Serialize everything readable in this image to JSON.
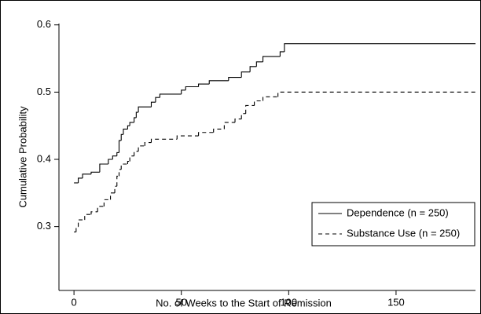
{
  "chart_data": {
    "type": "step",
    "xlabel": "No. of Weeks to the Start of Remission",
    "ylabel": "Cumulative Probability",
    "xlim": [
      -7,
      187
    ],
    "xticks": [
      0,
      50,
      100,
      150
    ],
    "ylim": [
      0.205,
      0.602
    ],
    "yticks": [
      0.3,
      0.4,
      0.5,
      0.6
    ],
    "legend": "lower right",
    "series": [
      {
        "name": "Dependence (n = 250)",
        "color": "#000000",
        "line_style": "solid",
        "x": [
          0,
          2,
          4,
          8,
          12,
          16,
          18,
          20,
          21,
          22,
          23,
          25,
          26,
          28,
          29,
          30,
          36,
          38,
          40,
          50,
          52,
          58,
          63,
          72,
          78,
          82,
          85,
          88,
          96,
          98,
          187
        ],
        "values": [
          0.365,
          0.372,
          0.378,
          0.381,
          0.393,
          0.4,
          0.405,
          0.41,
          0.428,
          0.437,
          0.445,
          0.45,
          0.455,
          0.462,
          0.47,
          0.478,
          0.485,
          0.492,
          0.497,
          0.503,
          0.508,
          0.512,
          0.517,
          0.522,
          0.53,
          0.538,
          0.545,
          0.553,
          0.56,
          0.572,
          0.572
        ]
      },
      {
        "name": "Substance Use (n = 250)",
        "color": "#000000",
        "line_style": "dashed",
        "x": [
          0,
          1,
          2,
          5,
          8,
          11,
          14,
          17,
          19,
          20,
          21,
          22,
          25,
          26,
          28,
          30,
          33,
          36,
          48,
          58,
          65,
          70,
          75,
          78,
          80,
          84,
          88,
          95,
          187
        ],
        "values": [
          0.292,
          0.3,
          0.31,
          0.318,
          0.322,
          0.33,
          0.34,
          0.35,
          0.36,
          0.375,
          0.385,
          0.393,
          0.397,
          0.405,
          0.412,
          0.42,
          0.425,
          0.43,
          0.435,
          0.44,
          0.445,
          0.455,
          0.46,
          0.468,
          0.48,
          0.487,
          0.493,
          0.5,
          0.5
        ]
      }
    ]
  }
}
